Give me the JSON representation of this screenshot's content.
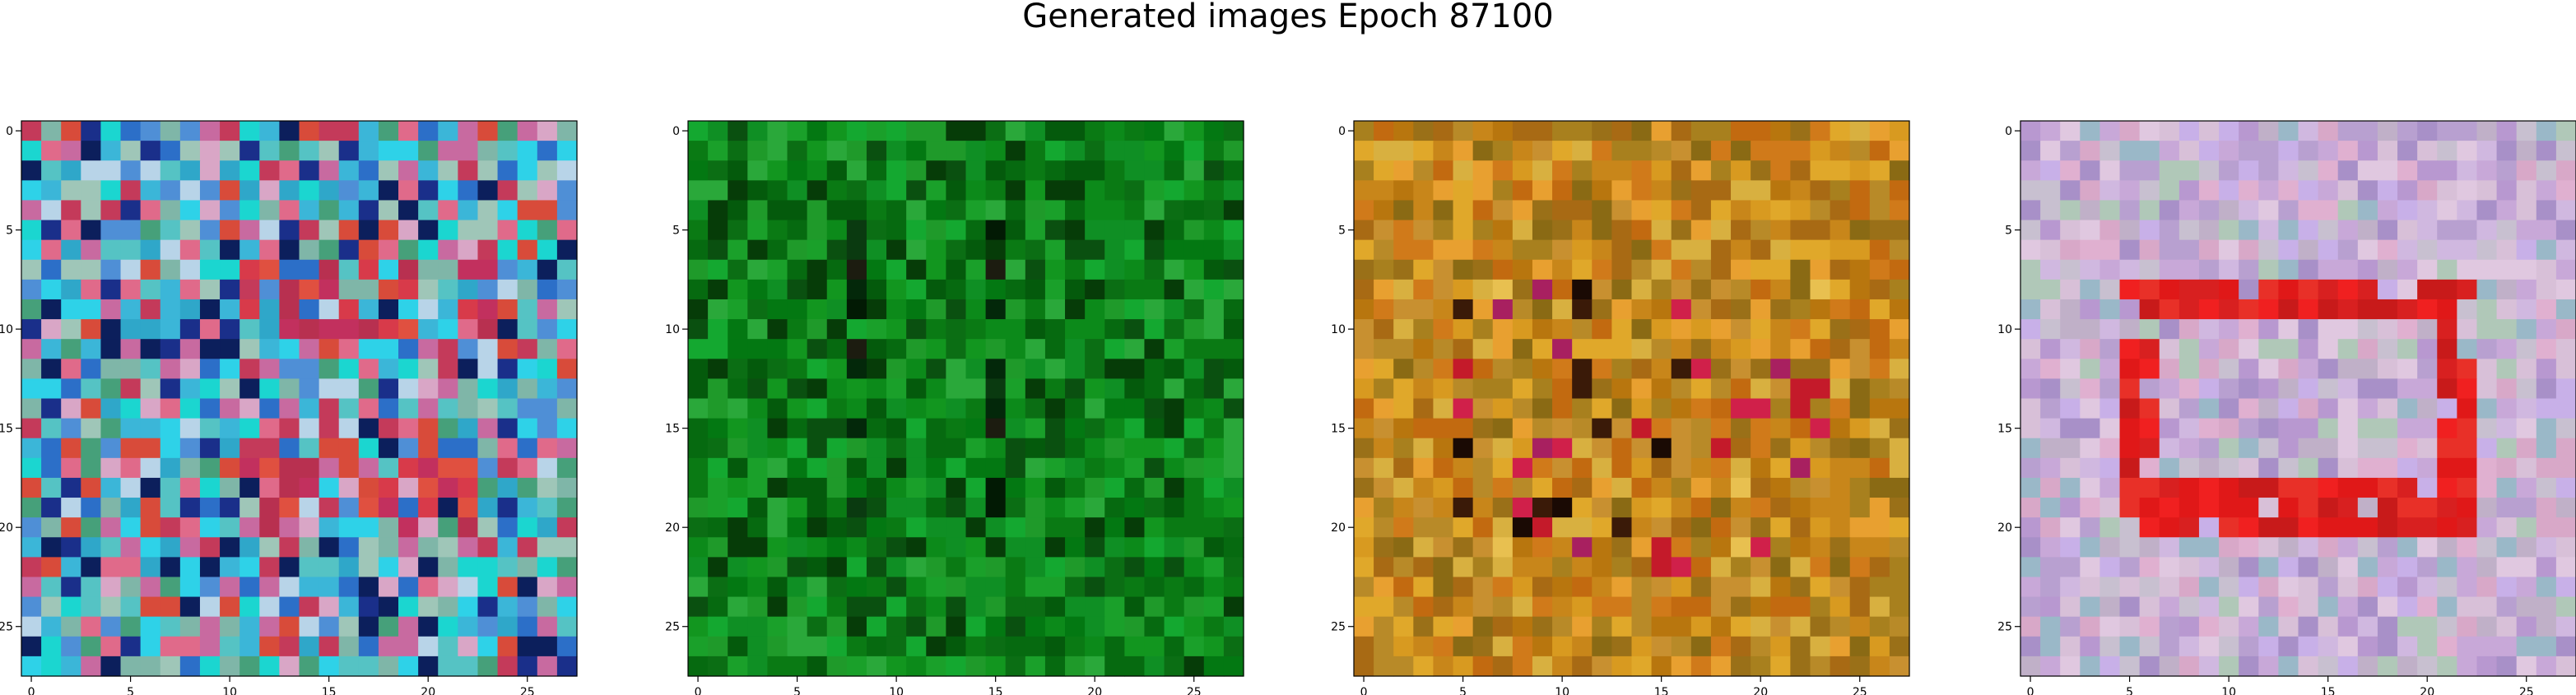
{
  "chart_data": {
    "type": "heatmap",
    "title": "Generated images Epoch 87100",
    "grid_size": 28,
    "x_ticks": [
      "0",
      "5",
      "10",
      "15",
      "20",
      "25"
    ],
    "y_ticks": [
      "0",
      "5",
      "10",
      "15",
      "20",
      "25"
    ],
    "tick_values": [
      0,
      5,
      10,
      15,
      20,
      25
    ],
    "panels": [
      {
        "name": "panel-1",
        "palette": [
          "#2fa7c9",
          "#3bb6d8",
          "#55c3c4",
          "#7fb6a8",
          "#4f8fd6",
          "#2c6fc8",
          "#1a2f8a",
          "#0c1f5c",
          "#c86aa0",
          "#d9a6c6",
          "#b8d4e8",
          "#9fc6b8",
          "#c43a5a",
          "#d84b3a",
          "#1bd6d0",
          "#46a07a",
          "#e06a8a",
          "#2ed2e8"
        ],
        "motif": "red-band",
        "motif_colors": [
          "#d83a4a",
          "#c2305e",
          "#e05040",
          "#b83050"
        ]
      },
      {
        "name": "panel-2",
        "palette": [
          "#0a7a14",
          "#0c8a1a",
          "#12961f",
          "#066a10",
          "#045a0c",
          "#1aa02a",
          "#0f8f24",
          "#2aa83a",
          "#037812",
          "#0b6e14",
          "#14a830",
          "#1f9a2a",
          "#063c08",
          "#0a5010"
        ],
        "motif": "dark-cross",
        "motif_colors": [
          "#021a04",
          "#03280a",
          "#0a3a10",
          "#1c1c10"
        ]
      },
      {
        "name": "panel-3",
        "palette": [
          "#c8861a",
          "#d89a20",
          "#b8760e",
          "#e0a82a",
          "#a86a14",
          "#c89030",
          "#d07a1a",
          "#b88a28",
          "#9a7018",
          "#e8a030",
          "#c26a10",
          "#a8801e",
          "#d8b040",
          "#8a6a14"
        ],
        "motif": "speckle",
        "motif_colors": [
          "#c41a2a",
          "#d0204a",
          "#3a1a08",
          "#1a0a04",
          "#e8c050",
          "#a82060"
        ]
      },
      {
        "name": "panel-4",
        "palette": [
          "#c8a8d8",
          "#d0b8e0",
          "#b8a0d0",
          "#d8c0d8",
          "#c0b0c8",
          "#e0c8e0",
          "#a890c8",
          "#c8c0d0",
          "#b0c8b8",
          "#d8a8c8",
          "#9ab8c8",
          "#c8b0e8",
          "#b898d0",
          "#e0b0d0"
        ],
        "motif": "red-frame",
        "motif_colors": [
          "#e01818",
          "#d82020",
          "#e83028",
          "#c81a1a",
          "#f02020"
        ]
      }
    ]
  }
}
